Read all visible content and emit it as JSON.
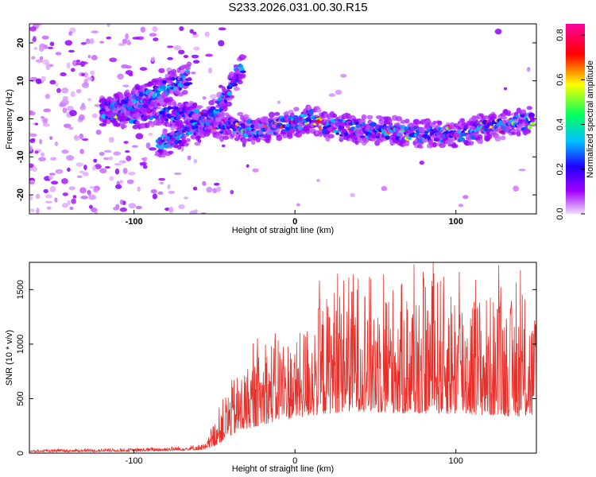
{
  "title": "S233.2026.031.00.30.R15",
  "chart_data": [
    {
      "type": "heatmap",
      "xlabel": "Height of straight line (km)",
      "ylabel": "Frequency (Hz)",
      "xlim": [
        -165,
        150
      ],
      "ylim": [
        -25,
        25
      ],
      "x_ticks": [
        -100,
        0,
        100
      ],
      "y_ticks": [
        -20,
        -10,
        0,
        10,
        20
      ],
      "colorbar": {
        "label": "Normalized spectral amplitude",
        "range": [
          0.0,
          0.85
        ],
        "ticks": [
          0.0,
          0.2,
          0.4,
          0.6,
          0.8
        ],
        "tick_labels": [
          "0.0",
          "0.2",
          "0.4",
          "0.6",
          "0.8"
        ],
        "colormap": [
          "#f2dcff",
          "#a000ff",
          "#2000ff",
          "#00c0ff",
          "#00ff60",
          "#ffff00",
          "#ff0000",
          "#ff00a0"
        ]
      },
      "ridges": [
        {
          "x": [
            -120,
            -100,
            -85,
            -70,
            -55,
            -45,
            -35,
            -25,
            -10,
            0,
            10,
            20,
            40,
            60,
            80,
            100,
            120,
            140,
            148
          ],
          "y": [
            2,
            1,
            2,
            1,
            0,
            -2,
            -2,
            -3,
            -2,
            -1,
            0,
            -2,
            -3,
            -3,
            -4,
            -4,
            -2,
            -1,
            0
          ]
        },
        {
          "x": [
            -85,
            -70,
            -55,
            -45,
            -38,
            -32
          ],
          "y": [
            -7,
            -4,
            -1,
            4,
            10,
            14
          ]
        },
        {
          "x": [
            -120,
            -100,
            -85,
            -75,
            -65
          ],
          "y": [
            2,
            4,
            7,
            9,
            11
          ]
        }
      ]
    },
    {
      "type": "line",
      "xlabel": "Height of straight line (km)",
      "ylabel": "SNR (10 * v/v)",
      "xlim": [
        -165,
        150
      ],
      "ylim": [
        0,
        1750
      ],
      "x_ticks": [
        -100,
        0,
        100
      ],
      "y_ticks": [
        0,
        500,
        1000,
        1500
      ],
      "color": "#e8302a",
      "envelope": {
        "x": [
          -165,
          -100,
          -70,
          -55,
          -48,
          -40,
          -30,
          -20,
          -10,
          0,
          10,
          20,
          30,
          40,
          50,
          70,
          90,
          110,
          130,
          150
        ],
        "baseline": [
          10,
          15,
          25,
          30,
          80,
          160,
          220,
          260,
          300,
          320,
          340,
          360,
          380,
          380,
          370,
          360,
          360,
          350,
          340,
          330
        ],
        "amplitude": [
          20,
          30,
          40,
          60,
          320,
          500,
          600,
          700,
          850,
          700,
          950,
          1100,
          1300,
          1300,
          1250,
          1200,
          1300,
          1150,
          1100,
          1000
        ]
      }
    }
  ]
}
